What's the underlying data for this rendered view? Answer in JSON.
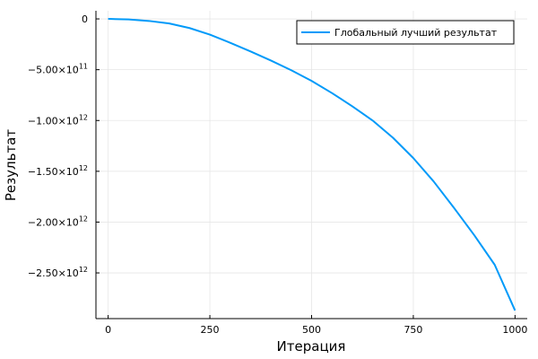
{
  "chart_data": {
    "type": "line",
    "title": "",
    "xlabel": "Итерация",
    "ylabel": "Результат",
    "xlim": [
      -30,
      1030
    ],
    "ylim": [
      -2950000000000.0,
      80000000000.0
    ],
    "grid": true,
    "legend_position": "top-right",
    "x_ticks": [
      {
        "value": 0,
        "label": "0"
      },
      {
        "value": 250,
        "label": "250"
      },
      {
        "value": 500,
        "label": "500"
      },
      {
        "value": 750,
        "label": "750"
      },
      {
        "value": 1000,
        "label": "1000"
      }
    ],
    "y_ticks": [
      {
        "value": 0,
        "mantissa": "0",
        "exponent": ""
      },
      {
        "value": -500000000000.0,
        "mantissa": "−5.00×10",
        "exponent": "11"
      },
      {
        "value": -1000000000000.0,
        "mantissa": "−1.00×10",
        "exponent": "12"
      },
      {
        "value": -1500000000000.0,
        "mantissa": "−1.50×10",
        "exponent": "12"
      },
      {
        "value": -2000000000000.0,
        "mantissa": "−2.00×10",
        "exponent": "12"
      },
      {
        "value": -2500000000000.0,
        "mantissa": "−2.50×10",
        "exponent": "12"
      }
    ],
    "series": [
      {
        "name": "Глобальный лучший результат",
        "color": "#009af9",
        "x": [
          0,
          50,
          100,
          150,
          200,
          250,
          300,
          350,
          400,
          450,
          500,
          550,
          600,
          650,
          700,
          750,
          800,
          850,
          900,
          950,
          1000
        ],
        "y": [
          0,
          -5000000000.0,
          -20000000000.0,
          -45000000000.0,
          -90000000000.0,
          -155000000000.0,
          -235000000000.0,
          -320000000000.0,
          -410000000000.0,
          -505000000000.0,
          -610000000000.0,
          -730000000000.0,
          -860000000000.0,
          -1000000000000.0,
          -1170000000000.0,
          -1370000000000.0,
          -1600000000000.0,
          -1860000000000.0,
          -2130000000000.0,
          -2420000000000.0,
          -2870000000000.0
        ]
      }
    ]
  }
}
